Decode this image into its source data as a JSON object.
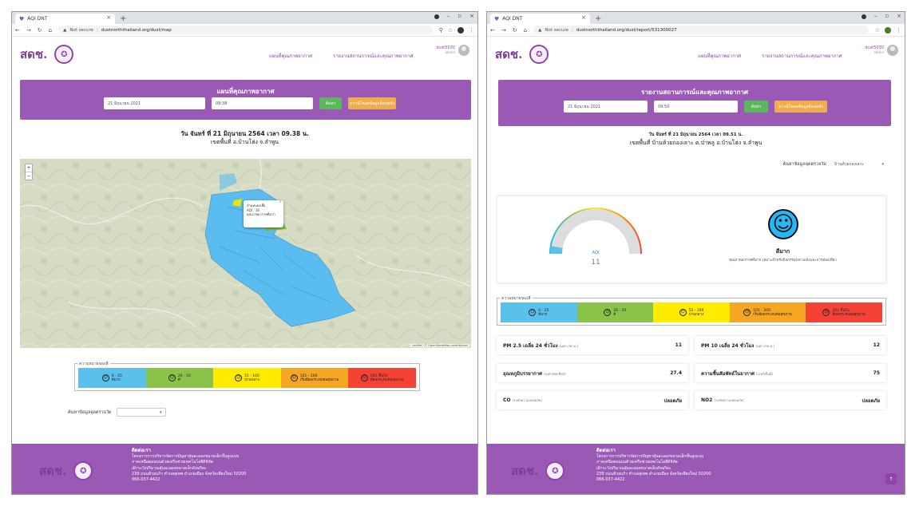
{
  "browser": {
    "tab_title": "AQI DNT",
    "new_tab": "+",
    "not_secure": "Not secure",
    "url_left": "dustnorththailand.org/dust/map",
    "url_right": "dustnorththailand.org/dust/report/531300027"
  },
  "site": {
    "logo_text": "สดช.",
    "nav": [
      "แผนที่คุณภาพอากาศ",
      "รายงานสถานการณ์และคุณภาพอากาศ"
    ],
    "user_name": "dust5030",
    "user_role": "admin"
  },
  "map_page": {
    "title": "แผนที่คุณภาพอากาศ",
    "date_value": "21 มิถุนายน 2021",
    "time_value": "09:38",
    "search_button": "ค้นหา",
    "export_button": "ดาวน์โหลดข้อมูลย้อนหลัง",
    "datetime_line": "วัน จันทร์ ที่ 21 มิถุนายน 2564 เวลา 09.38 น.",
    "area_line": "เขตพื้นที่ อ.บ้านโฮ่ง จ.ลำพูน",
    "zoom_in": "+",
    "zoom_out": "−",
    "popup_lines": [
      "บ้านหนองเฮี้ย",
      "AQI : 16",
      "คุณภาพอากาศดีมาก"
    ],
    "attribution": "Leaflet | © OpenStreetMap contributors",
    "filter_label": "ค้นหาข้อมูลจุดตรวจวัด",
    "filter_value": ""
  },
  "report_page": {
    "title": "รายงานสถานการณ์และคุณภาพอากาศ",
    "date_value": "21 มิถุนายน 2021",
    "time_value": "09:50",
    "search_button": "ค้นหา",
    "export_button": "ดาวน์โหลดข้อมูลย้อนหลัง",
    "datetime_line": "วัน จันทร์ ที่ 21 มิถุนายน 2564 เวลา 09.51 น.",
    "area_line": "เขตพื้นที่ บ้านห้วยกองเลาะ ต.ป่าพลู อ.บ้านโฮ่ง จ.ลำพูน",
    "filter_label": "ค้นหาข้อมูลจุดตรวจวัด",
    "filter_value": "บ้านห้วยกองเลาะ",
    "aqi_label": "AQI",
    "aqi_value": "11",
    "aqi_fraction": 0.055,
    "status": "ดีมาก",
    "status_desc": "คุณภาพอากาศดีมาก เหมาะสำหรับกิจกรรมกลางแจ้งและการท่องเที่ยว",
    "stats": [
      {
        "label": "PM 2.5 เฉลี่ย 24 ชั่วโมง",
        "unit": "(มคก./ลบ.ม.)",
        "value": "11"
      },
      {
        "label": "PM 10 เฉลี่ย 24 ชั่วโมง",
        "unit": "(มคก./ลบ.ม.)",
        "value": "12"
      },
      {
        "label": "อุณหภูมิบรรยากาศ",
        "unit": "(องศาเซลเซียส)",
        "value": "27.4"
      },
      {
        "label": "ความชื้นสัมพัทธ์ในอากาศ",
        "unit": "(เปอร์เซ็นต์)",
        "value": "75"
      },
      {
        "label": "CO",
        "unit": "(ระดับความปลอดภัย)",
        "value": "ปลอดภัย"
      },
      {
        "label": "NO2",
        "unit": "(ระดับความปลอดภัย)",
        "value": "ปลอดภัย"
      }
    ]
  },
  "legend": {
    "title": "ความหมายของสี",
    "items": [
      {
        "range": "0 - 25",
        "desc": "ดีมาก",
        "color": "#5bc0eb",
        "face": "☺"
      },
      {
        "range": "26 - 50",
        "desc": "ดี",
        "color": "#8bc34a",
        "face": "☺"
      },
      {
        "range": "51 - 100",
        "desc": "ปานกลาง",
        "color": "#ffeb00",
        "face": "☺"
      },
      {
        "range": "101 - 200",
        "desc": "เริ่มมีผลกระทบต่อสุขภาพ",
        "color": "#f5a623",
        "face": "☹"
      },
      {
        "range": "201 ขึ้นไป",
        "desc": "มีผลกระทบต่อสุขภาพ",
        "color": "#f44336",
        "face": "☹"
      }
    ]
  },
  "footer": {
    "heading": "ติดต่อเรา",
    "lines": [
      "โครงการการบริหารจัดการปัญหาฝุ่นละอองขนาดเล็กขั้นสูงแบบ",
      "ภาคเหนือตอนบนด้วยเครือข่ายเทคโนโลยีดิจิทัล",
      "เฝ้าระวังปริมาณฝุ่นละอองขนาดเล็กอัจฉริยะ",
      "239 ถนนห้วยแก้ว ตำบลสุเทพ อำเภอเมือง จังหวัดเชียงใหม่ 50200",
      "066-037-4422"
    ],
    "to_top": "↑"
  },
  "colors": {
    "brand": "#9b59b6",
    "accent": "#8e44ad",
    "map_zone": "#5bbcf0"
  }
}
